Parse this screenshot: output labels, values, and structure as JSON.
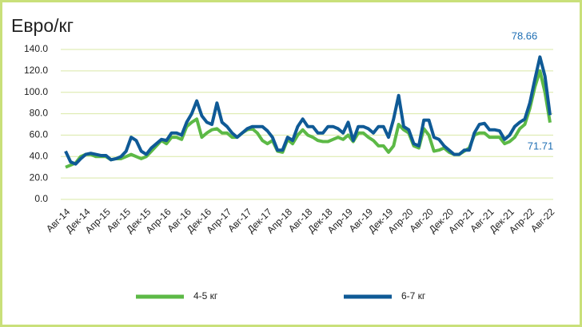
{
  "chart_data": {
    "type": "line",
    "title": "Евро/кг",
    "categories": [
      "Авг-14",
      null,
      null,
      null,
      "Дек-14",
      null,
      null,
      null,
      "Апр-15",
      null,
      null,
      null,
      "Авг-15",
      null,
      null,
      null,
      "Дек-15",
      null,
      null,
      null,
      "Апр-16",
      null,
      null,
      null,
      "Авг-16",
      null,
      null,
      null,
      "Дек-16",
      null,
      null,
      null,
      "Апр-17",
      null,
      null,
      null,
      "Авг-17",
      null,
      null,
      null,
      "Дек-17",
      null,
      null,
      null,
      "Апр-18",
      null,
      null,
      null,
      "Авг-18",
      null,
      null,
      null,
      "Дек-18",
      null,
      null,
      null,
      "Апр-19",
      null,
      null,
      null,
      "Авг-19",
      null,
      null,
      null,
      "Дек-19",
      null,
      null,
      null,
      "Апр-20",
      null,
      null,
      null,
      "Авг-20",
      null,
      null,
      null,
      "Дек-20",
      null,
      null,
      null,
      "Апр-21",
      null,
      null,
      null,
      "Авг-21",
      null,
      null,
      null,
      "Дек-21",
      null,
      null,
      null,
      "Апр-22",
      null,
      null,
      null,
      "Авг-22"
    ],
    "series": [
      {
        "name": "4-5 кг",
        "color": "#5cb946",
        "values": [
          30,
          32,
          34,
          40,
          42,
          42,
          40,
          40,
          40,
          37,
          38,
          38,
          40,
          42,
          40,
          38,
          40,
          45,
          50,
          55,
          52,
          58,
          58,
          56,
          68,
          72,
          75,
          58,
          62,
          65,
          66,
          62,
          62,
          58,
          58,
          62,
          65,
          66,
          62,
          55,
          52,
          55,
          45,
          44,
          56,
          52,
          60,
          65,
          60,
          58,
          55,
          54,
          54,
          56,
          58,
          56,
          60,
          54,
          62,
          62,
          58,
          55,
          50,
          50,
          44,
          50,
          70,
          65,
          62,
          50,
          48,
          66,
          60,
          45,
          46,
          48,
          44,
          42,
          42,
          45,
          48,
          60,
          62,
          62,
          58,
          58,
          58,
          52,
          54,
          58,
          66,
          70,
          85,
          105,
          120,
          100,
          71.71
        ]
      },
      {
        "name": "6-7 кг",
        "color": "#0f5a96",
        "values": [
          45,
          35,
          33,
          38,
          42,
          43,
          42,
          41,
          41,
          37,
          38,
          40,
          45,
          58,
          55,
          45,
          42,
          48,
          52,
          56,
          55,
          62,
          62,
          60,
          72,
          80,
          92,
          78,
          72,
          70,
          90,
          72,
          68,
          62,
          58,
          62,
          66,
          68,
          68,
          68,
          64,
          58,
          46,
          46,
          58,
          55,
          68,
          75,
          68,
          68,
          62,
          62,
          68,
          68,
          66,
          62,
          72,
          55,
          68,
          68,
          66,
          62,
          68,
          68,
          58,
          75,
          97,
          68,
          65,
          52,
          50,
          74,
          74,
          58,
          56,
          50,
          46,
          42,
          42,
          46,
          46,
          62,
          70,
          71,
          65,
          65,
          64,
          56,
          60,
          68,
          72,
          75,
          90,
          112,
          133,
          115,
          78.66
        ]
      }
    ],
    "ylim": [
      0,
      140
    ],
    "yticks": [
      {
        "value": 0,
        "label": "0.0"
      },
      {
        "value": 20,
        "label": "20.0"
      },
      {
        "value": 40,
        "label": "40.0"
      },
      {
        "value": 60,
        "label": "60.0"
      },
      {
        "value": 80,
        "label": "80.0"
      },
      {
        "value": 100,
        "label": "100.0"
      },
      {
        "value": 120,
        "label": "120.0"
      },
      {
        "value": 140,
        "label": "140.0"
      }
    ],
    "grid": true
  }
}
